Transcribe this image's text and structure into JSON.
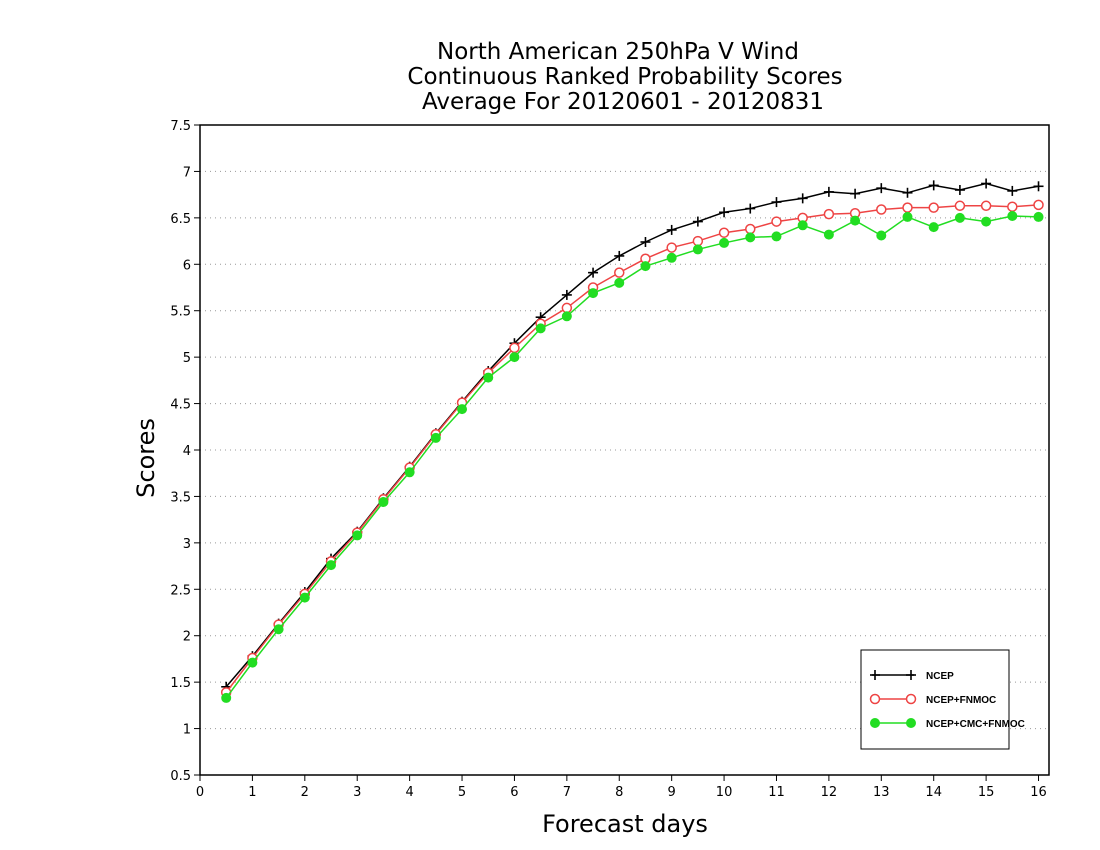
{
  "chart_data": {
    "type": "line",
    "title": [
      "North American 250hPa V Wind",
      "Continuous Ranked Probability Scores",
      "Average For 20120601 - 20120831"
    ],
    "xlabel": "Forecast days",
    "ylabel": "Scores",
    "xlim": [
      0,
      16.2
    ],
    "ylim": [
      0.5,
      7.5
    ],
    "xticks": [
      0,
      1,
      2,
      3,
      4,
      5,
      6,
      7,
      8,
      9,
      10,
      11,
      12,
      13,
      14,
      15,
      16
    ],
    "yticks": [
      0.5,
      1,
      1.5,
      2,
      2.5,
      3,
      3.5,
      4,
      4.5,
      5,
      5.5,
      6,
      6.5,
      7,
      7.5
    ],
    "grid": true,
    "legend_position": "bottom-right",
    "x": [
      0.5,
      1,
      1.5,
      2,
      2.5,
      3,
      3.5,
      4,
      4.5,
      5,
      5.5,
      6,
      6.5,
      7,
      7.5,
      8,
      8.5,
      9,
      9.5,
      10,
      10.5,
      11,
      11.5,
      12,
      12.5,
      13,
      13.5,
      14,
      14.5,
      15,
      15.5,
      16
    ],
    "series": [
      {
        "name": "NCEP",
        "color": "#000000",
        "marker": "plus",
        "values": [
          1.45,
          1.78,
          2.13,
          2.47,
          2.83,
          3.12,
          3.48,
          3.82,
          4.18,
          4.52,
          4.85,
          5.15,
          5.43,
          5.67,
          5.91,
          6.09,
          6.24,
          6.37,
          6.46,
          6.56,
          6.6,
          6.67,
          6.71,
          6.78,
          6.76,
          6.82,
          6.77,
          6.85,
          6.8,
          6.87,
          6.79,
          6.84
        ]
      },
      {
        "name": "NCEP+FNMOC",
        "color": "#ee4444",
        "marker": "open-circle",
        "values": [
          1.39,
          1.76,
          2.12,
          2.45,
          2.8,
          3.11,
          3.47,
          3.81,
          4.17,
          4.51,
          4.83,
          5.1,
          5.36,
          5.53,
          5.75,
          5.91,
          6.06,
          6.18,
          6.25,
          6.34,
          6.38,
          6.46,
          6.5,
          6.54,
          6.55,
          6.59,
          6.61,
          6.61,
          6.63,
          6.63,
          6.62,
          6.64
        ]
      },
      {
        "name": "NCEP+CMC+FNMOC",
        "color": "#22dd22",
        "marker": "filled-circle",
        "values": [
          1.33,
          1.71,
          2.07,
          2.41,
          2.76,
          3.08,
          3.44,
          3.76,
          4.13,
          4.44,
          4.78,
          5.0,
          5.31,
          5.44,
          5.69,
          5.8,
          5.98,
          6.07,
          6.16,
          6.23,
          6.29,
          6.3,
          6.42,
          6.32,
          6.47,
          6.31,
          6.51,
          6.4,
          6.5,
          6.46,
          6.52,
          6.51
        ]
      }
    ]
  }
}
